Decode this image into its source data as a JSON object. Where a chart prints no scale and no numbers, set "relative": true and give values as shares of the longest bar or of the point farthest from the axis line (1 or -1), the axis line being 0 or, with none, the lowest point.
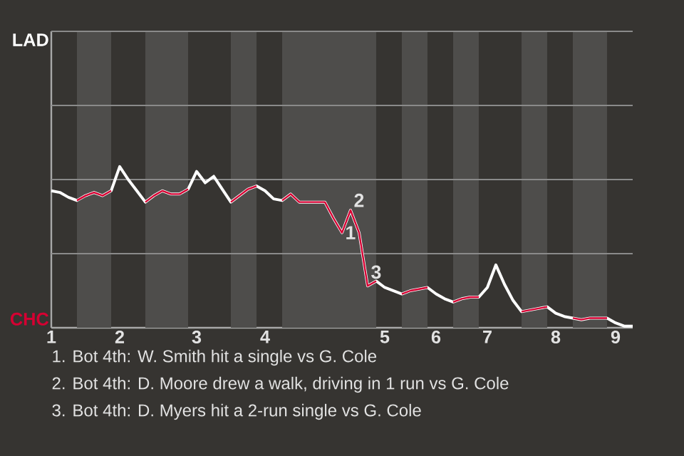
{
  "chart_data": {
    "type": "line",
    "relative": true,
    "line_style": "solid",
    "ref_lines": [
      {
        "axis": "y",
        "value": 0.46,
        "color": "#8a8a8a"
      },
      {
        "axis": "y",
        "value": 0.92,
        "color": "#8a8a8a"
      },
      {
        "axis": "y",
        "value": 1.38,
        "color": "#8a8a8a"
      },
      {
        "axis": "y",
        "value": 1.84,
        "color": "#8a8a8a"
      }
    ],
    "categories": [
      "1",
      null,
      null,
      null,
      null,
      null,
      null,
      null,
      "2",
      null,
      null,
      null,
      null,
      null,
      null,
      null,
      null,
      "3",
      null,
      null,
      null,
      null,
      null,
      null,
      null,
      "4",
      null,
      null,
      null,
      null,
      null,
      null,
      null,
      null,
      null,
      null,
      null,
      null,
      null,
      "5",
      null,
      null,
      null,
      null,
      null,
      "6",
      null,
      null,
      null,
      null,
      null,
      "7",
      null,
      null,
      null,
      null,
      null,
      null,
      null,
      "8",
      null,
      null,
      null,
      null,
      null,
      null,
      "9",
      null,
      null
    ],
    "series": [
      {
        "name": "LAD",
        "color": "#ffffff",
        "values": [
          0.85,
          0.84,
          0.81,
          0.79,
          0.82,
          0.84,
          0.82,
          0.85,
          1,
          0.92,
          0.85,
          0.78,
          0.82,
          0.85,
          0.83,
          0.83,
          0.86,
          0.97,
          0.9,
          0.94,
          0.86,
          0.78,
          0.82,
          0.86,
          0.88,
          0.85,
          0.8,
          0.79,
          0.83,
          0.78,
          0.78,
          0.78,
          0.78,
          0.68,
          0.59,
          0.73,
          0.59,
          0.26,
          0.29,
          0.25,
          0.23,
          0.21,
          0.23,
          0.24,
          0.25,
          0.21,
          0.18,
          0.16,
          0.18,
          0.19,
          0.19,
          0.25,
          0.39,
          0.27,
          0.17,
          0.1,
          0.11,
          0.12,
          0.13,
          0.09,
          0.07,
          0.06,
          0.05,
          0.06,
          0.06,
          0.06,
          0.03,
          0.01,
          0.01
        ]
      },
      {
        "name": "CHC",
        "color": "#d50032",
        "values": [
          null,
          null,
          null,
          0.79,
          0.82,
          0.84,
          0.82,
          0.85,
          null,
          null,
          null,
          0.78,
          0.82,
          0.85,
          0.83,
          0.83,
          0.86,
          null,
          null,
          null,
          null,
          0.78,
          0.82,
          0.86,
          0.88,
          null,
          null,
          0.79,
          0.83,
          0.78,
          0.78,
          0.78,
          0.78,
          0.68,
          0.59,
          0.73,
          0.59,
          0.26,
          0.29,
          null,
          null,
          0.21,
          0.23,
          0.24,
          0.25,
          null,
          null,
          0.16,
          0.18,
          0.19,
          0.19,
          null,
          null,
          null,
          null,
          0.1,
          0.11,
          0.12,
          0.13,
          null,
          null,
          0.06,
          0.05,
          0.06,
          0.06,
          0.06,
          null,
          null,
          null
        ]
      }
    ],
    "annotations": [
      {
        "text": "1",
        "y": 0.59
      },
      {
        "text": "2",
        "y": 0.73
      },
      {
        "text": "3",
        "y": 0.26
      },
      "1. Bot 4th: W. Smith hit a single vs G. Cole",
      "2. Bot 4th: D. Moore drew a walk, driving in 1 run vs G. Cole",
      "3. Bot 4th: D. Myers hit a 2-run single vs G. Cole"
    ]
  }
}
